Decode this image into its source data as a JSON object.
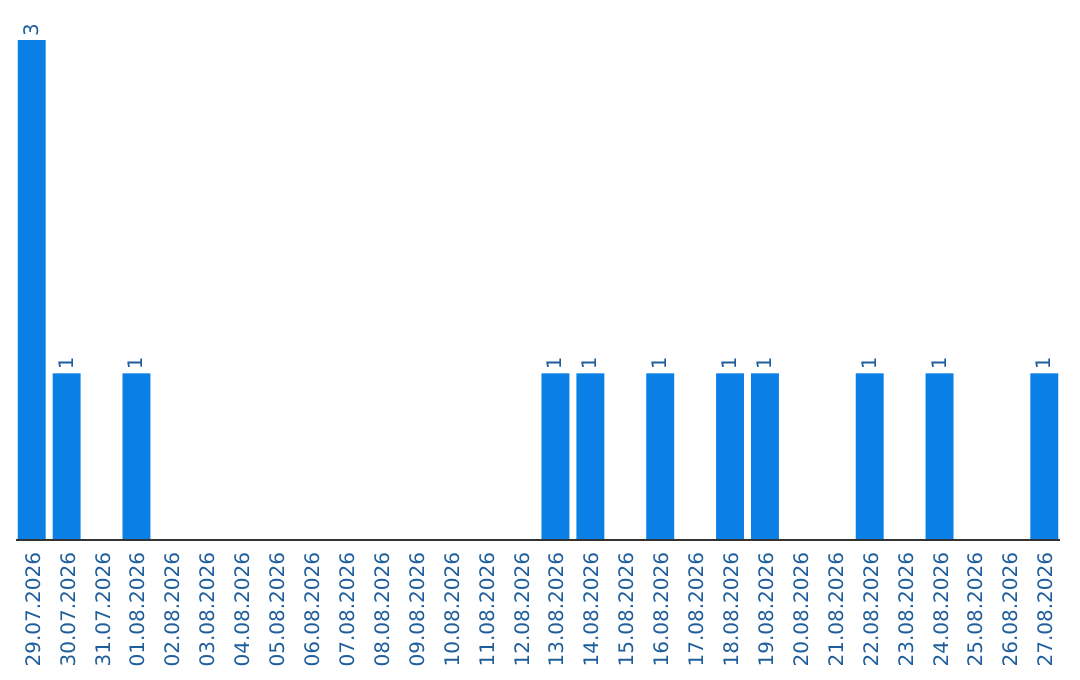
{
  "chart_data": {
    "type": "bar",
    "categories": [
      "29.07.2026",
      "30.07.2026",
      "31.07.2026",
      "01.08.2026",
      "02.08.2026",
      "03.08.2026",
      "04.08.2026",
      "05.08.2026",
      "06.08.2026",
      "07.08.2026",
      "08.08.2026",
      "09.08.2026",
      "10.08.2026",
      "11.08.2026",
      "12.08.2026",
      "13.08.2026",
      "14.08.2026",
      "15.08.2026",
      "16.08.2026",
      "17.08.2026",
      "18.08.2026",
      "19.08.2026",
      "20.08.2026",
      "21.08.2026",
      "22.08.2026",
      "23.08.2026",
      "24.08.2026",
      "25.08.2026",
      "26.08.2026",
      "27.08.2026"
    ],
    "values": [
      3,
      1,
      0,
      1,
      0,
      0,
      0,
      0,
      0,
      0,
      0,
      0,
      0,
      0,
      0,
      1,
      1,
      0,
      1,
      0,
      1,
      1,
      0,
      0,
      1,
      0,
      1,
      0,
      0,
      1
    ],
    "value_labels": [
      "3",
      "1",
      null,
      "1",
      null,
      null,
      null,
      null,
      null,
      null,
      null,
      null,
      null,
      null,
      null,
      "1",
      "1",
      null,
      "1",
      null,
      "1",
      "1",
      null,
      null,
      "1",
      null,
      "1",
      null,
      null,
      "1"
    ],
    "color": "#0a7fe6"
  }
}
